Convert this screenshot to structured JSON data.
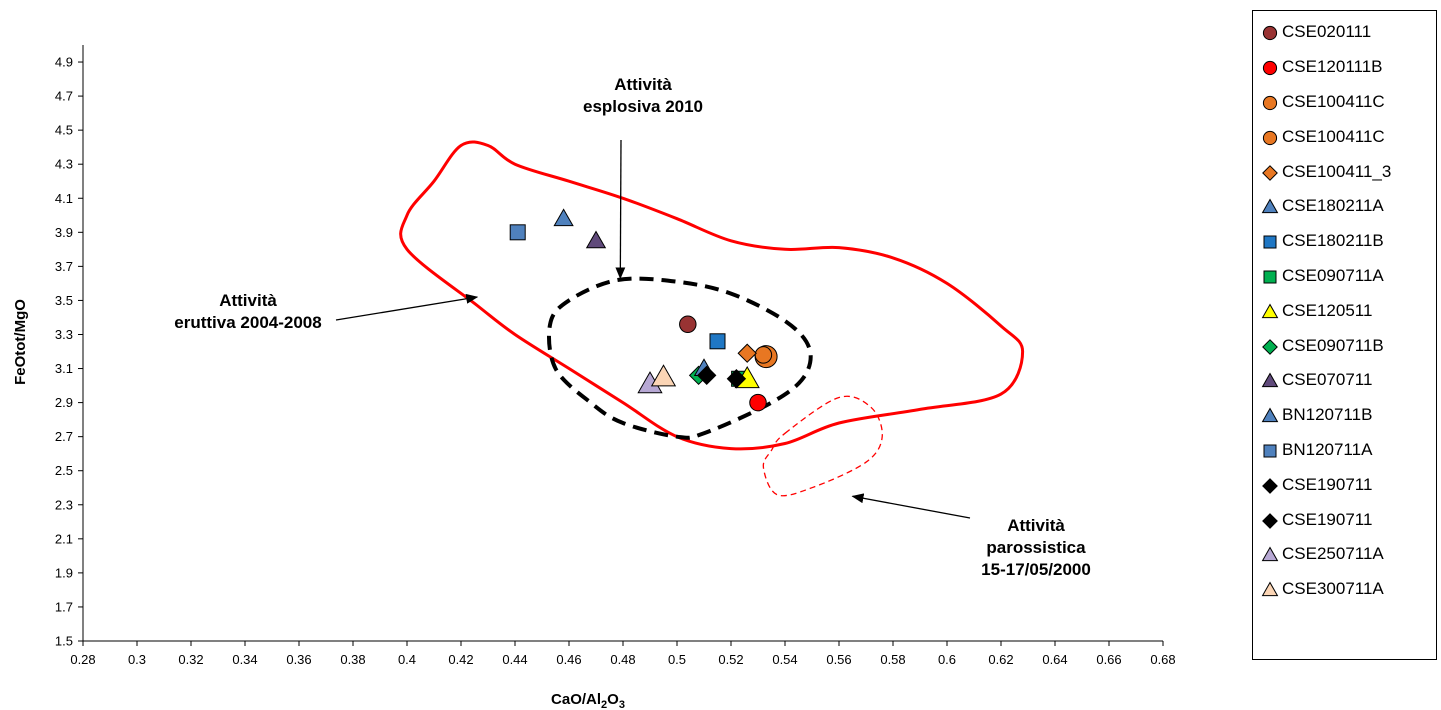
{
  "chart_data": {
    "type": "scatter",
    "title": "",
    "xlabel": "CaO/Al2O3",
    "ylabel": "FeOtot/MgO",
    "xlim": [
      0.28,
      0.68
    ],
    "ylim": [
      1.5,
      5.0
    ],
    "x_ticks": [
      "0.28",
      "0.3",
      "0.32",
      "0.34",
      "0.36",
      "0.38",
      "0.4",
      "0.42",
      "0.44",
      "0.46",
      "0.48",
      "0.5",
      "0.52",
      "0.54",
      "0.56",
      "0.58",
      "0.6",
      "0.62",
      "0.64",
      "0.66",
      "0.68"
    ],
    "y_ticks": [
      "1.5",
      "1.7",
      "1.9",
      "2.1",
      "2.3",
      "2.5",
      "2.7",
      "2.9",
      "3.1",
      "3.3",
      "3.5",
      "3.7",
      "3.9",
      "4.1",
      "4.3",
      "4.5",
      "4.7",
      "4.9"
    ],
    "grid": false,
    "legend_position": "right",
    "series": [
      {
        "name": "CSE020111",
        "marker": "circle",
        "color": "#993333",
        "x": [
          0.504
        ],
        "y": [
          3.36
        ]
      },
      {
        "name": "CSE120111B",
        "marker": "circle",
        "color": "#ff0000",
        "x": [
          0.53
        ],
        "y": [
          2.9
        ]
      },
      {
        "name": "CSE100411C",
        "marker": "circle",
        "color": "#e87722",
        "x": [
          0.533
        ],
        "y": [
          3.17
        ]
      },
      {
        "name": "CSE100411C",
        "marker": "circle",
        "color": "#e87722",
        "x": [
          0.532
        ],
        "y": [
          3.18
        ]
      },
      {
        "name": "CSE100411_3",
        "marker": "diamond",
        "color": "#e87722",
        "x": [
          0.526
        ],
        "y": [
          3.19
        ]
      },
      {
        "name": "CSE180211A",
        "marker": "triangle",
        "color": "#4f81bd",
        "x": [
          0.458
        ],
        "y": [
          3.98
        ]
      },
      {
        "name": "CSE180211B",
        "marker": "square",
        "color": "#1f77c4",
        "x": [
          0.515
        ],
        "y": [
          3.26
        ]
      },
      {
        "name": "CSE090711A",
        "marker": "square",
        "color": "#00b050",
        "x": [
          0.523
        ],
        "y": [
          3.04
        ]
      },
      {
        "name": "CSE120511",
        "marker": "triangle",
        "color": "#ffff00",
        "x": [
          0.526
        ],
        "y": [
          3.04
        ]
      },
      {
        "name": "CSE090711B",
        "marker": "diamond",
        "color": "#00b050",
        "x": [
          0.508
        ],
        "y": [
          3.06
        ]
      },
      {
        "name": "CSE070711",
        "marker": "triangle",
        "color": "#604a7b",
        "x": [
          0.47
        ],
        "y": [
          3.85
        ]
      },
      {
        "name": "BN120711B",
        "marker": "triangle",
        "color": "#4f81bd",
        "x": [
          0.51
        ],
        "y": [
          3.1
        ]
      },
      {
        "name": "BN120711A",
        "marker": "square",
        "color": "#4f81bd",
        "x": [
          0.441
        ],
        "y": [
          3.9
        ]
      },
      {
        "name": "CSE190711",
        "marker": "diamond",
        "color": "#000000",
        "x": [
          0.511
        ],
        "y": [
          3.06
        ]
      },
      {
        "name": "CSE190711",
        "marker": "diamond",
        "color": "#000000",
        "x": [
          0.522
        ],
        "y": [
          3.04
        ]
      },
      {
        "name": "CSE250711A",
        "marker": "triangle",
        "color": "#b7a8d4",
        "x": [
          0.49
        ],
        "y": [
          3.01
        ]
      },
      {
        "name": "CSE300711A",
        "marker": "triangle",
        "color": "#fbd5b5",
        "x": [
          0.495
        ],
        "y": [
          3.05
        ]
      }
    ],
    "regions": [
      {
        "label_lines": [
          "Attività",
          "eruttiva 2004-2008"
        ],
        "style": "solid",
        "color": "#ff0000",
        "points": [
          [
            0.4,
            4.0
          ],
          [
            0.41,
            4.2
          ],
          [
            0.42,
            4.41
          ],
          [
            0.43,
            4.41
          ],
          [
            0.44,
            4.3
          ],
          [
            0.46,
            4.2
          ],
          [
            0.48,
            4.1
          ],
          [
            0.5,
            3.98
          ],
          [
            0.52,
            3.85
          ],
          [
            0.54,
            3.8
          ],
          [
            0.56,
            3.81
          ],
          [
            0.58,
            3.75
          ],
          [
            0.6,
            3.6
          ],
          [
            0.62,
            3.35
          ],
          [
            0.628,
            3.2
          ],
          [
            0.62,
            2.95
          ],
          [
            0.59,
            2.86
          ],
          [
            0.56,
            2.78
          ],
          [
            0.54,
            2.66
          ],
          [
            0.52,
            2.63
          ],
          [
            0.5,
            2.7
          ],
          [
            0.48,
            2.9
          ],
          [
            0.46,
            3.1
          ],
          [
            0.44,
            3.3
          ],
          [
            0.426,
            3.47
          ],
          [
            0.4,
            3.8
          ]
        ]
      },
      {
        "label_lines": [
          "Attività",
          "esplosiva  2010"
        ],
        "style": "dashed",
        "color": "#000000",
        "points": [
          [
            0.478,
            3.62
          ],
          [
            0.5,
            3.61
          ],
          [
            0.52,
            3.54
          ],
          [
            0.54,
            3.38
          ],
          [
            0.549,
            3.22
          ],
          [
            0.547,
            3.05
          ],
          [
            0.535,
            2.9
          ],
          [
            0.51,
            2.72
          ],
          [
            0.5,
            2.7
          ],
          [
            0.48,
            2.78
          ],
          [
            0.468,
            2.9
          ],
          [
            0.455,
            3.1
          ],
          [
            0.453,
            3.36
          ],
          [
            0.46,
            3.5
          ]
        ]
      },
      {
        "label_lines": [
          "Attività",
          "parossistica",
          "15-17/05/2000"
        ],
        "style": "dashed",
        "color": "#ff0000",
        "points": [
          [
            0.54,
            2.72
          ],
          [
            0.56,
            2.93
          ],
          [
            0.572,
            2.87
          ],
          [
            0.576,
            2.7
          ],
          [
            0.57,
            2.55
          ],
          [
            0.55,
            2.4
          ],
          [
            0.537,
            2.36
          ],
          [
            0.532,
            2.52
          ],
          [
            0.535,
            2.62
          ]
        ]
      }
    ],
    "annotations": [
      {
        "lines": [
          "Attività",
          "eruttiva 2004-2008"
        ],
        "arrow_to": [
          0.426,
          3.52
        ]
      },
      {
        "lines": [
          "Attività",
          "esplosiva  2010"
        ],
        "arrow_to": [
          0.479,
          3.63
        ]
      },
      {
        "lines": [
          "Attività",
          "parossistica",
          "15-17/05/2000"
        ],
        "arrow_to": [
          0.565,
          2.35
        ]
      }
    ]
  }
}
